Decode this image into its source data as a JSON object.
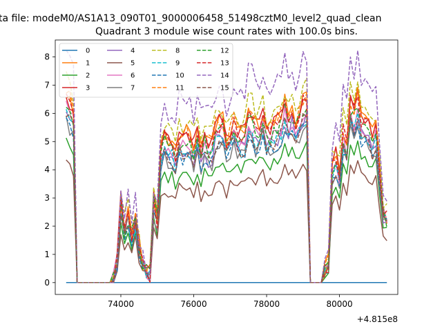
{
  "chart_data": {
    "type": "line",
    "suptitle": "ta file: modeM0/AS1A13_090T01_9000006458_51498cztM0_level2_quad_clean",
    "title": "Quadrant 3 module wise count rates with 100.0s bins.",
    "xlabel": "",
    "ylabel": "",
    "x_offset_label": "+4.815e8",
    "xlim": [
      72200,
      81600
    ],
    "ylim": [
      -0.42,
      8.6
    ],
    "xticks": [
      74000,
      76000,
      78000,
      80000
    ],
    "xtick_labels": [
      "74000",
      "76000",
      "78000",
      "80000"
    ],
    "yticks": [
      0,
      1,
      2,
      3,
      4,
      5,
      6,
      7,
      8
    ],
    "ytick_labels": [
      "0",
      "1",
      "2",
      "3",
      "4",
      "5",
      "6",
      "7",
      "8"
    ],
    "grid": false,
    "legend_placement": "upper-left",
    "legend_columns": 4,
    "x_range": [
      72500,
      81300
    ],
    "bin_seconds": 100,
    "segments": [
      {
        "start": 72500,
        "end": 72700,
        "kind": "tail",
        "mean": 6.0
      },
      {
        "start": 72800,
        "end": 73700,
        "kind": "gap",
        "mean": 0
      },
      {
        "start": 73800,
        "end": 74800,
        "kind": "low",
        "mean": 1.8
      },
      {
        "start": 74900,
        "end": 79100,
        "kind": "high",
        "mean": 5.0
      },
      {
        "start": 79200,
        "end": 79500,
        "kind": "gap",
        "mean": 0
      },
      {
        "start": 79600,
        "end": 81300,
        "kind": "burst",
        "mean": 4.0
      }
    ],
    "series": [
      {
        "name": "0",
        "color": "#1f77b4",
        "dash": false,
        "scale": 0.0
      },
      {
        "name": "1",
        "color": "#ff7f0e",
        "dash": false,
        "scale": 1.13
      },
      {
        "name": "2",
        "color": "#2ca02c",
        "dash": false,
        "scale": 0.84
      },
      {
        "name": "3",
        "color": "#d62728",
        "dash": false,
        "scale": 1.12
      },
      {
        "name": "4",
        "color": "#9467bd",
        "dash": false,
        "scale": 1.0
      },
      {
        "name": "5",
        "color": "#8c564b",
        "dash": false,
        "scale": 0.72
      },
      {
        "name": "6",
        "color": "#e377c2",
        "dash": false,
        "scale": 1.04
      },
      {
        "name": "7",
        "color": "#7f7f7f",
        "dash": false,
        "scale": 0.95
      },
      {
        "name": "8",
        "color": "#bcbd22",
        "dash": true,
        "scale": 1.2
      },
      {
        "name": "9",
        "color": "#17becf",
        "dash": true,
        "scale": 1.0
      },
      {
        "name": "10",
        "color": "#1f77b4",
        "dash": true,
        "scale": 0.97
      },
      {
        "name": "11",
        "color": "#ff7f0e",
        "dash": true,
        "scale": 1.13
      },
      {
        "name": "12",
        "color": "#2ca02c",
        "dash": true,
        "scale": 1.06
      },
      {
        "name": "13",
        "color": "#d62728",
        "dash": true,
        "scale": 1.1
      },
      {
        "name": "14",
        "color": "#9467bd",
        "dash": true,
        "scale": 1.38
      },
      {
        "name": "15",
        "color": "#8c564b",
        "dash": true,
        "scale": 0.99
      }
    ]
  }
}
